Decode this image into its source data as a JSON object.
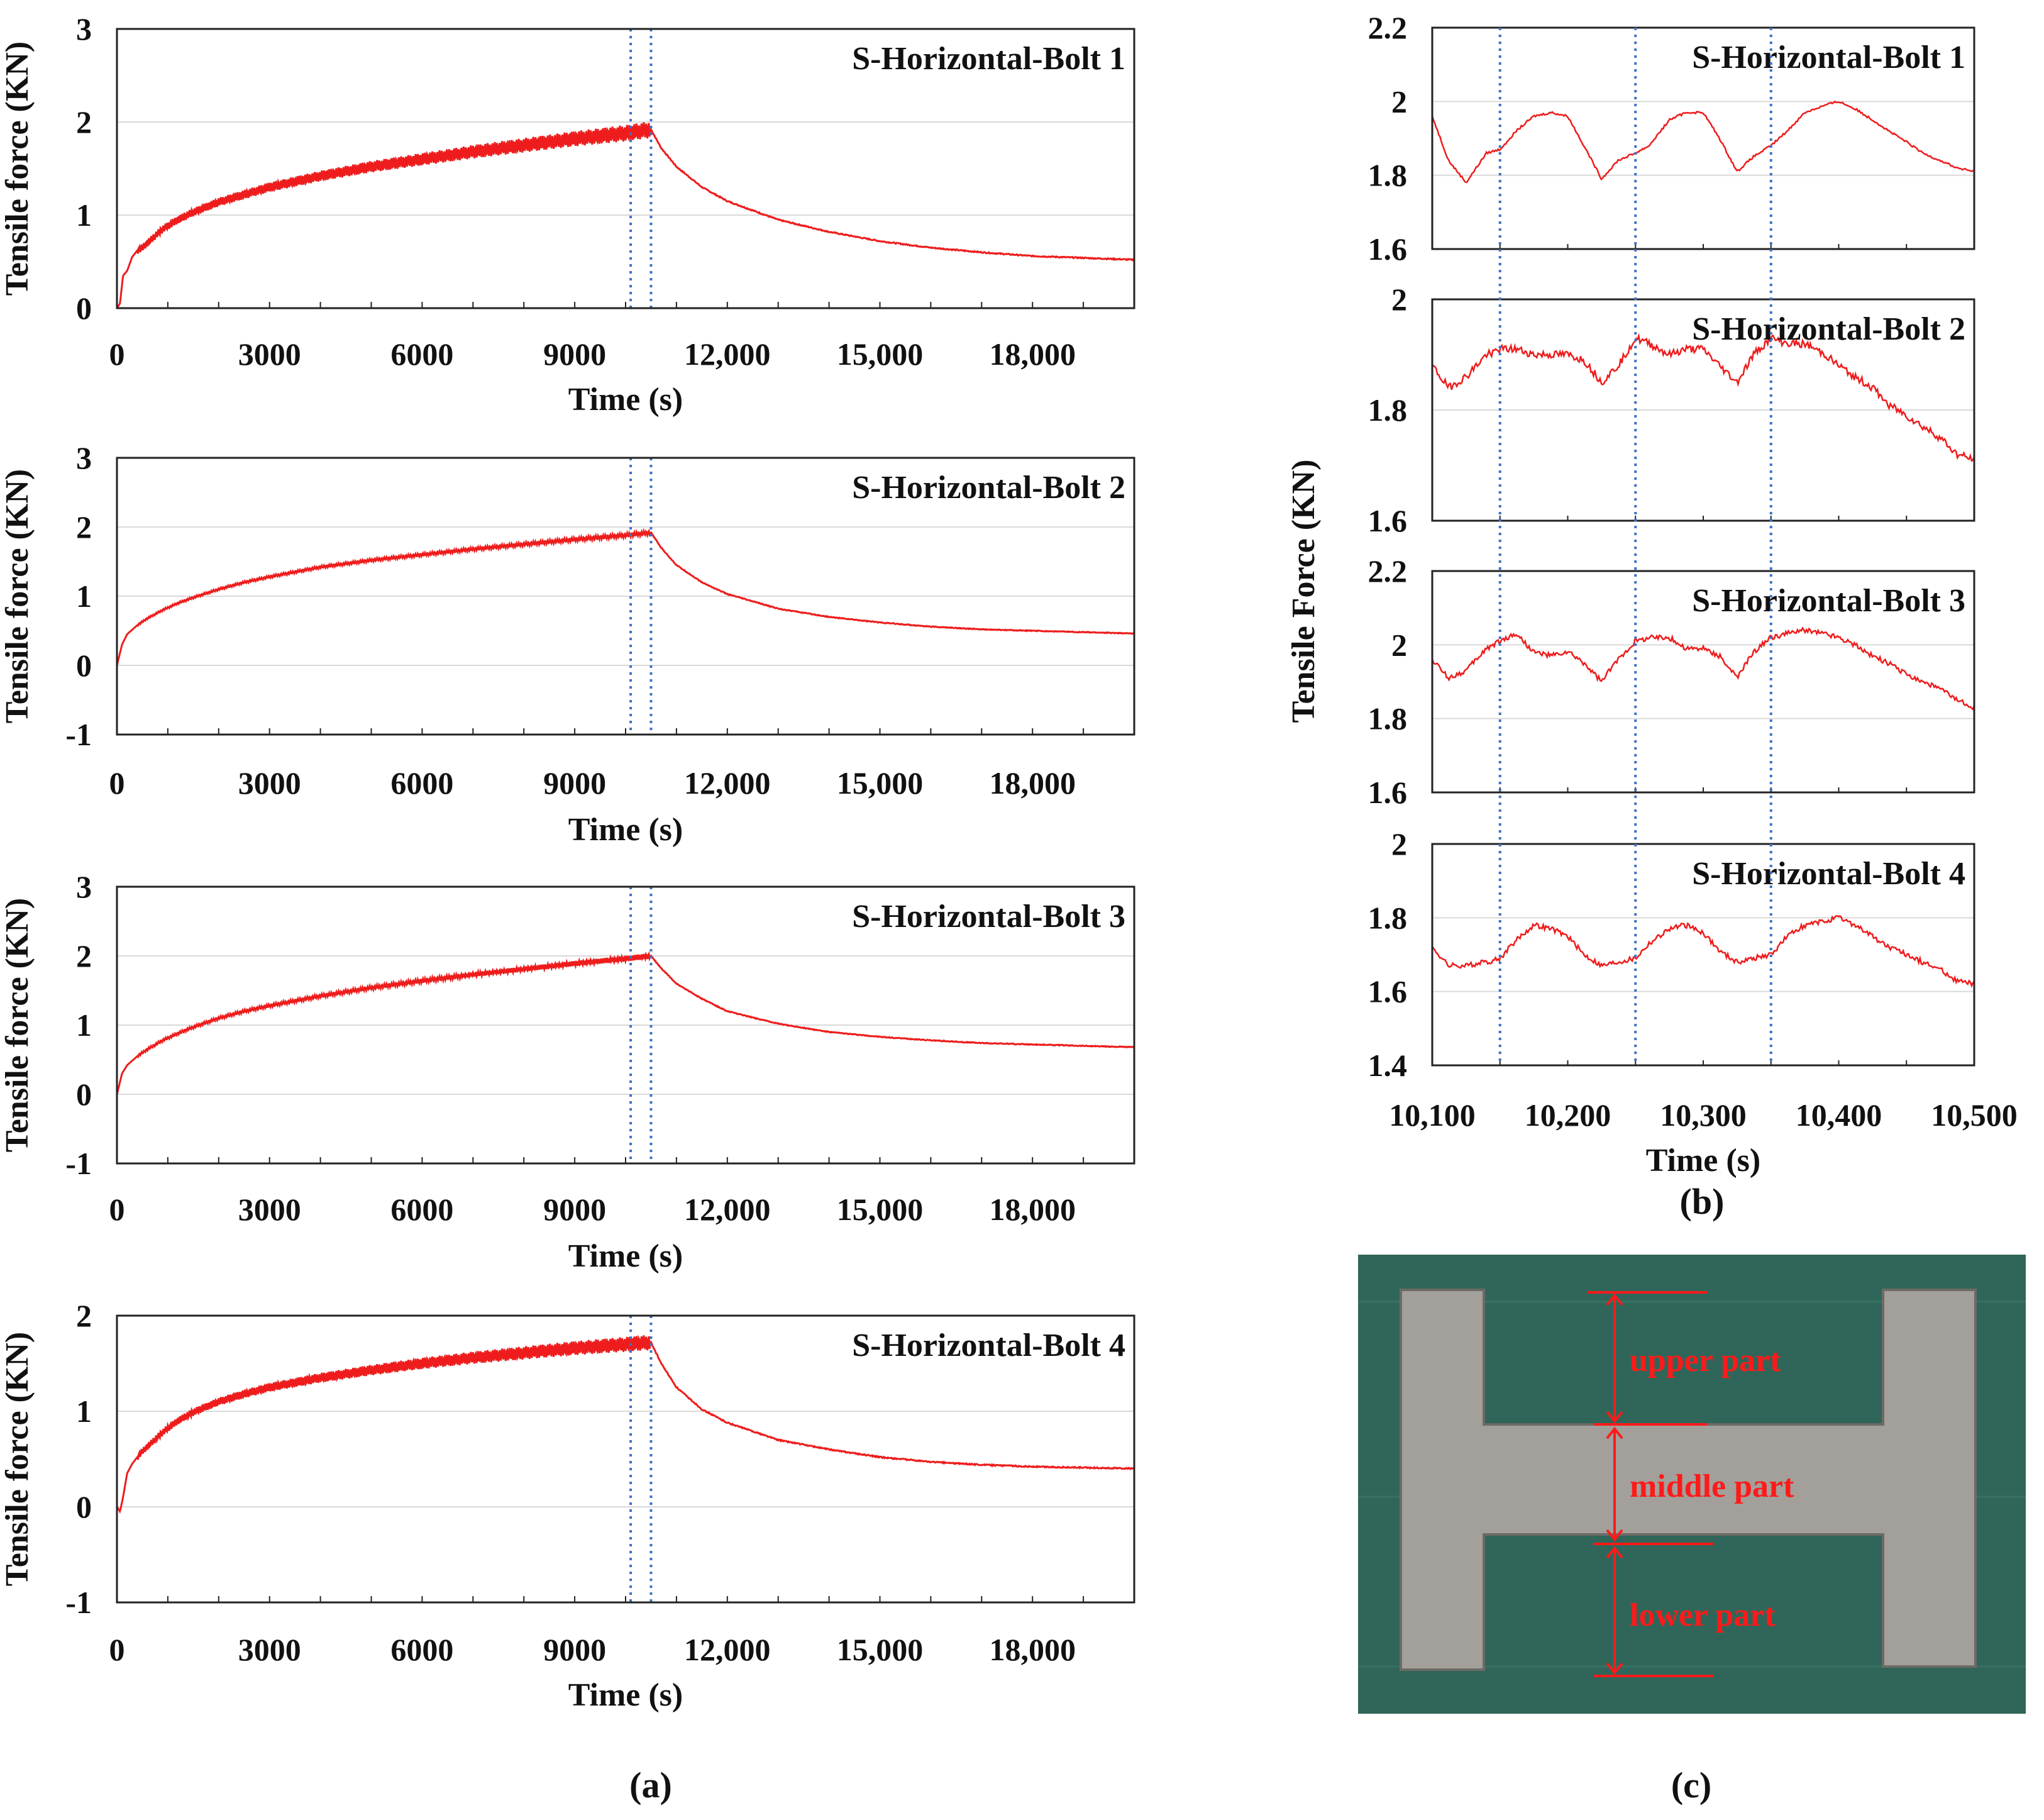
{
  "colors": {
    "series": "#ee1c1c",
    "marker": "#3f72c8",
    "grid": "#d9d9d9",
    "axis": "#222222",
    "mat": "#2f6659",
    "metal": "#a39f9a",
    "annotation": "#ff1a1a"
  },
  "panel_labels": {
    "a": "(a)",
    "b": "(b)",
    "c": "(c)"
  },
  "photo": {
    "labels": [
      "upper part",
      "middle part",
      "lower  part"
    ]
  },
  "chart_data": [
    {
      "id": "a1",
      "type": "line",
      "title": "S-Horizontal-Bolt 1",
      "xlabel": "Time (s)",
      "ylabel": "Tensile force (KN)",
      "xlim": [
        0,
        20000
      ],
      "ylim": [
        0,
        3
      ],
      "xticks": [
        0,
        3000,
        6000,
        9000,
        12000,
        15000,
        18000
      ],
      "xtick_labels": [
        "0",
        "3000",
        "6000",
        "9000",
        "12,000",
        "15,000",
        "18,000"
      ],
      "yticks": [
        0,
        1,
        2,
        3
      ],
      "ytick_labels": [
        "0",
        "1",
        "2",
        "3"
      ],
      "markers": [
        10100,
        10500
      ],
      "grid": true,
      "series": [
        {
          "name": "S-Horizontal-Bolt 1",
          "peak": 1.92,
          "end": 0.52,
          "osc": 0.09,
          "x": [
            0,
            60,
            120,
            200,
            300,
            400,
            500,
            700,
            900,
            1200,
            1500,
            2000,
            2500,
            3000,
            4000,
            5000,
            6000,
            7000,
            8000,
            9000,
            10000,
            10500,
            10700,
            11000,
            11500,
            12000,
            13000,
            14000,
            15000,
            16000,
            17000,
            18000,
            19000,
            20000
          ],
          "y": [
            0,
            0.05,
            0.35,
            0.4,
            0.55,
            0.62,
            0.65,
            0.75,
            0.85,
            0.95,
            1.03,
            1.14,
            1.22,
            1.3,
            1.42,
            1.52,
            1.6,
            1.68,
            1.75,
            1.82,
            1.88,
            1.92,
            1.72,
            1.52,
            1.3,
            1.15,
            0.95,
            0.82,
            0.72,
            0.65,
            0.6,
            0.56,
            0.54,
            0.52
          ]
        }
      ]
    },
    {
      "id": "a2",
      "type": "line",
      "title": "S-Horizontal-Bolt 2",
      "xlabel": "Time (s)",
      "ylabel": "Tensile force (KN)",
      "xlim": [
        0,
        20000
      ],
      "ylim": [
        -1,
        3
      ],
      "xticks": [
        0,
        3000,
        6000,
        9000,
        12000,
        15000,
        18000
      ],
      "xtick_labels": [
        "0",
        "3000",
        "6000",
        "9000",
        "12,000",
        "15,000",
        "18,000"
      ],
      "yticks": [
        -1,
        0,
        1,
        2,
        3
      ],
      "ytick_labels": [
        "-1",
        "0",
        "1",
        "2",
        "3"
      ],
      "markers": [
        10100,
        10500
      ],
      "grid": true,
      "series": [
        {
          "name": "S-Horizontal-Bolt 2",
          "peak": 1.92,
          "end": 0.46,
          "osc": 0.03,
          "x": [
            0,
            100,
            200,
            400,
            600,
            900,
            1200,
            1500,
            2000,
            2500,
            3000,
            4000,
            5000,
            6000,
            7000,
            8000,
            9000,
            10000,
            10500,
            10700,
            11000,
            11500,
            12000,
            13000,
            14000,
            15000,
            16000,
            17000,
            18000,
            19000,
            20000
          ],
          "y": [
            0,
            0.3,
            0.45,
            0.58,
            0.68,
            0.8,
            0.9,
            0.98,
            1.1,
            1.2,
            1.28,
            1.42,
            1.52,
            1.6,
            1.68,
            1.75,
            1.82,
            1.88,
            1.92,
            1.7,
            1.45,
            1.2,
            1.03,
            0.82,
            0.7,
            0.62,
            0.56,
            0.52,
            0.5,
            0.48,
            0.46
          ]
        }
      ]
    },
    {
      "id": "a3",
      "type": "line",
      "title": "S-Horizontal-Bolt 3",
      "xlabel": "Time (s)",
      "ylabel": "Tensile force (KN)",
      "xlim": [
        0,
        20000
      ],
      "ylim": [
        -1,
        3
      ],
      "xticks": [
        0,
        3000,
        6000,
        9000,
        12000,
        15000,
        18000
      ],
      "xtick_labels": [
        "0",
        "3000",
        "6000",
        "9000",
        "12,000",
        "15,000",
        "18,000"
      ],
      "yticks": [
        -1,
        0,
        1,
        2,
        3
      ],
      "ytick_labels": [
        "-1",
        "0",
        "1",
        "2",
        "3"
      ],
      "markers": [
        10100,
        10500
      ],
      "grid": true,
      "series": [
        {
          "name": "S-Horizontal-Bolt 3",
          "peak": 2.0,
          "end": 0.68,
          "osc": 0.04,
          "x": [
            0,
            100,
            200,
            400,
            600,
            900,
            1200,
            1500,
            2000,
            2500,
            3000,
            4000,
            5000,
            6000,
            7000,
            8000,
            9000,
            10000,
            10500,
            10700,
            11000,
            11500,
            12000,
            13000,
            14000,
            15000,
            16000,
            17000,
            18000,
            19000,
            20000
          ],
          "y": [
            0,
            0.3,
            0.42,
            0.55,
            0.65,
            0.78,
            0.88,
            0.97,
            1.1,
            1.2,
            1.28,
            1.42,
            1.54,
            1.64,
            1.73,
            1.81,
            1.89,
            1.96,
            2.0,
            1.82,
            1.6,
            1.38,
            1.2,
            1.02,
            0.9,
            0.83,
            0.78,
            0.74,
            0.72,
            0.7,
            0.68
          ]
        }
      ]
    },
    {
      "id": "a4",
      "type": "line",
      "title": "S-Horizontal-Bolt 4",
      "xlabel": "Time (s)",
      "ylabel": "Tensile force (KN)",
      "xlim": [
        0,
        20000
      ],
      "ylim": [
        -1,
        2
      ],
      "xticks": [
        0,
        3000,
        6000,
        9000,
        12000,
        15000,
        18000
      ],
      "xtick_labels": [
        "0",
        "3000",
        "6000",
        "9000",
        "12,000",
        "15,000",
        "18,000"
      ],
      "yticks": [
        -1,
        0,
        1,
        2
      ],
      "ytick_labels": [
        "-1",
        "0",
        "1",
        "2"
      ],
      "markers": [
        10100,
        10500
      ],
      "grid": true,
      "series": [
        {
          "name": "S-Horizontal-Bolt 4",
          "peak": 1.72,
          "end": 0.4,
          "osc": 0.08,
          "x": [
            0,
            60,
            120,
            200,
            300,
            400,
            500,
            700,
            900,
            1200,
            1500,
            2000,
            2500,
            3000,
            4000,
            5000,
            6000,
            7000,
            8000,
            9000,
            10000,
            10500,
            10700,
            11000,
            11500,
            12000,
            13000,
            14000,
            15000,
            16000,
            17000,
            18000,
            19000,
            20000
          ],
          "y": [
            0,
            -0.05,
            0.1,
            0.35,
            0.45,
            0.52,
            0.58,
            0.68,
            0.78,
            0.9,
            0.99,
            1.1,
            1.18,
            1.25,
            1.35,
            1.43,
            1.5,
            1.56,
            1.61,
            1.66,
            1.7,
            1.72,
            1.5,
            1.25,
            1.02,
            0.88,
            0.7,
            0.6,
            0.52,
            0.47,
            0.44,
            0.42,
            0.41,
            0.4
          ]
        }
      ]
    },
    {
      "id": "b1",
      "type": "line",
      "title": "S-Horizontal-Bolt 1",
      "xlim": [
        10100,
        10500
      ],
      "ylim": [
        1.6,
        2.2
      ],
      "yticks": [
        1.6,
        1.8,
        2,
        2.2
      ],
      "ytick_labels": [
        "1.6",
        "1.8",
        "2",
        "2.2"
      ],
      "markers": [
        10150,
        10250,
        10350
      ],
      "grid": true,
      "series": [
        {
          "name": "S-Horizontal-Bolt 1",
          "x": [
            10100,
            10112,
            10125,
            10140,
            10150,
            10162,
            10175,
            10188,
            10200,
            10212,
            10225,
            10237,
            10250,
            10260,
            10275,
            10287,
            10300,
            10312,
            10325,
            10337,
            10350,
            10362,
            10375,
            10390,
            10400,
            10412,
            10425,
            10437,
            10450,
            10462,
            10475,
            10487,
            10500
          ],
          "y": [
            1.96,
            1.84,
            1.78,
            1.86,
            1.87,
            1.92,
            1.96,
            1.97,
            1.96,
            1.88,
            1.79,
            1.84,
            1.86,
            1.88,
            1.95,
            1.97,
            1.97,
            1.9,
            1.81,
            1.85,
            1.88,
            1.92,
            1.97,
            1.99,
            2.0,
            1.98,
            1.95,
            1.92,
            1.89,
            1.86,
            1.84,
            1.82,
            1.81
          ]
        }
      ]
    },
    {
      "id": "b2",
      "type": "line",
      "title": "S-Horizontal-Bolt 2",
      "xlim": [
        10100,
        10500
      ],
      "ylim": [
        1.6,
        2.0
      ],
      "yticks": [
        1.6,
        1.8,
        2
      ],
      "ytick_labels": [
        "1.6",
        "1.8",
        "2"
      ],
      "markers": [
        10150,
        10250,
        10350
      ],
      "grid": true,
      "series": [
        {
          "name": "S-Horizontal-Bolt 2",
          "x": [
            10100,
            10112,
            10125,
            10140,
            10150,
            10162,
            10175,
            10188,
            10200,
            10212,
            10225,
            10237,
            10250,
            10260,
            10275,
            10287,
            10300,
            10312,
            10325,
            10337,
            10350,
            10362,
            10375,
            10390,
            10400,
            10412,
            10425,
            10437,
            10450,
            10462,
            10475,
            10487,
            10500
          ],
          "y": [
            1.88,
            1.84,
            1.86,
            1.9,
            1.91,
            1.91,
            1.9,
            1.9,
            1.9,
            1.89,
            1.85,
            1.88,
            1.93,
            1.92,
            1.9,
            1.91,
            1.91,
            1.88,
            1.85,
            1.9,
            1.93,
            1.92,
            1.92,
            1.9,
            1.88,
            1.86,
            1.84,
            1.81,
            1.79,
            1.77,
            1.75,
            1.72,
            1.71
          ]
        }
      ]
    },
    {
      "id": "b3",
      "type": "line",
      "title": "S-Horizontal-Bolt 3",
      "xlim": [
        10100,
        10500
      ],
      "ylim": [
        1.6,
        2.2
      ],
      "yticks": [
        1.6,
        1.8,
        2,
        2.2
      ],
      "ytick_labels": [
        "1.6",
        "1.8",
        "2",
        "2.2"
      ],
      "markers": [
        10150,
        10250,
        10350
      ],
      "grid": true,
      "series": [
        {
          "name": "S-Horizontal-Bolt 3",
          "x": [
            10100,
            10112,
            10125,
            10140,
            10150,
            10162,
            10175,
            10188,
            10200,
            10212,
            10225,
            10237,
            10250,
            10260,
            10275,
            10287,
            10300,
            10312,
            10325,
            10337,
            10350,
            10362,
            10375,
            10390,
            10400,
            10412,
            10425,
            10437,
            10450,
            10462,
            10475,
            10487,
            10500
          ],
          "y": [
            1.96,
            1.91,
            1.93,
            1.99,
            2.01,
            2.03,
            1.98,
            1.97,
            1.98,
            1.95,
            1.9,
            1.96,
            2.01,
            2.02,
            2.02,
            1.99,
            1.99,
            1.97,
            1.91,
            1.98,
            2.02,
            2.03,
            2.04,
            2.03,
            2.02,
            2.0,
            1.97,
            1.95,
            1.92,
            1.9,
            1.88,
            1.85,
            1.83
          ]
        }
      ]
    },
    {
      "id": "b4",
      "type": "line",
      "title": "S-Horizontal-Bolt 4",
      "xlabel": "Time (s)",
      "ylabel": "Tensile Force (KN)",
      "xlim": [
        10100,
        10500
      ],
      "ylim": [
        1.4,
        2.0
      ],
      "xticks": [
        10100,
        10200,
        10300,
        10400,
        10500
      ],
      "xtick_labels": [
        "10,100",
        "10,200",
        "10,300",
        "10,400",
        "10,500"
      ],
      "yticks": [
        1.4,
        1.6,
        1.8,
        2
      ],
      "ytick_labels": [
        "1.4",
        "1.6",
        "1.8",
        "2"
      ],
      "markers": [
        10150,
        10250,
        10350
      ],
      "grid": true,
      "series": [
        {
          "name": "S-Horizontal-Bolt 4",
          "x": [
            10100,
            10112,
            10125,
            10140,
            10150,
            10162,
            10175,
            10188,
            10200,
            10212,
            10225,
            10237,
            10250,
            10260,
            10275,
            10287,
            10300,
            10312,
            10325,
            10337,
            10350,
            10362,
            10375,
            10390,
            10400,
            10412,
            10425,
            10437,
            10450,
            10462,
            10475,
            10487,
            10500
          ],
          "y": [
            1.72,
            1.67,
            1.67,
            1.68,
            1.69,
            1.74,
            1.78,
            1.77,
            1.75,
            1.7,
            1.67,
            1.68,
            1.69,
            1.73,
            1.77,
            1.78,
            1.76,
            1.71,
            1.68,
            1.69,
            1.7,
            1.75,
            1.78,
            1.79,
            1.8,
            1.78,
            1.75,
            1.72,
            1.7,
            1.68,
            1.66,
            1.63,
            1.62
          ]
        }
      ]
    }
  ]
}
